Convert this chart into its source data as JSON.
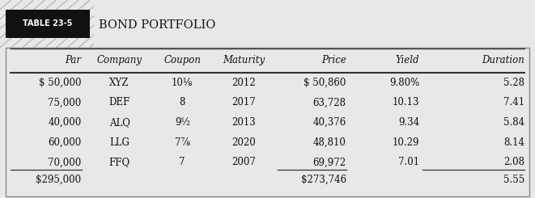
{
  "title_label": "TABLE 23-5",
  "title_text": "BOND PORTFOLIO",
  "headers": [
    "Par",
    "Company",
    "Coupon",
    "Maturity",
    "Price",
    "Yield",
    "Duration"
  ],
  "rows": [
    [
      "$ 50,000",
      "XYZ",
      "10⅛",
      "2012",
      "$ 50,860",
      "9.80%",
      "5.28"
    ],
    [
      "75,000",
      "DEF",
      "8",
      "2017",
      "63,728",
      "10.13",
      "7.41"
    ],
    [
      "40,000",
      "ALQ",
      "9½",
      "2013",
      "40,376",
      "9.34",
      "5.84"
    ],
    [
      "60,000",
      "LLG",
      "7⅞",
      "2020",
      "48,810",
      "10.29",
      "8.14"
    ],
    [
      "70,000",
      "FFQ",
      "7",
      "2007",
      "69,972",
      "7.01",
      "2.08"
    ]
  ],
  "total_row": [
    "$295,000",
    "",
    "",
    "",
    "$273,746",
    "",
    "5.55"
  ],
  "col_aligns": [
    "right",
    "center",
    "center",
    "center",
    "right",
    "right",
    "right"
  ],
  "outer_bg": "#e8e8e8",
  "table_bg": "#ffffff",
  "hatch_bg": "#d0d0d0",
  "hatch_color": "#bbbbbb",
  "badge_bg": "#111111",
  "badge_fg": "#ffffff",
  "text_color": "#111111",
  "line_color": "#333333",
  "title_font_size": 10.5,
  "badge_font_size": 7.0,
  "header_font_size": 8.5,
  "cell_font_size": 8.5
}
